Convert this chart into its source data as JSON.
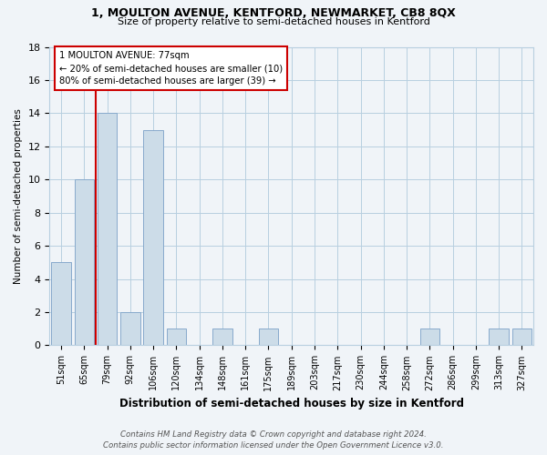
{
  "title1": "1, MOULTON AVENUE, KENTFORD, NEWMARKET, CB8 8QX",
  "title2": "Size of property relative to semi-detached houses in Kentford",
  "xlabel": "Distribution of semi-detached houses by size in Kentford",
  "ylabel": "Number of semi-detached properties",
  "categories": [
    "51sqm",
    "65sqm",
    "79sqm",
    "92sqm",
    "106sqm",
    "120sqm",
    "134sqm",
    "148sqm",
    "161sqm",
    "175sqm",
    "189sqm",
    "203sqm",
    "217sqm",
    "230sqm",
    "244sqm",
    "258sqm",
    "272sqm",
    "286sqm",
    "299sqm",
    "313sqm",
    "327sqm"
  ],
  "values": [
    5,
    10,
    14,
    2,
    13,
    1,
    0,
    1,
    0,
    1,
    0,
    0,
    0,
    0,
    0,
    0,
    1,
    0,
    0,
    1,
    1
  ],
  "bar_color": "#ccdce8",
  "bar_edge_color": "#88aacc",
  "property_line_index": 2,
  "annotation_title": "1 MOULTON AVENUE: 77sqm",
  "annotation_line1": "← 20% of semi-detached houses are smaller (10)",
  "annotation_line2": "80% of semi-detached houses are larger (39) →",
  "annotation_box_color": "#ffffff",
  "annotation_box_edge": "#cc0000",
  "property_line_color": "#cc0000",
  "ylim": [
    0,
    18
  ],
  "footer1": "Contains HM Land Registry data © Crown copyright and database right 2024.",
  "footer2": "Contains public sector information licensed under the Open Government Licence v3.0.",
  "bg_color": "#f0f4f8",
  "grid_color": "#b8cfe0"
}
